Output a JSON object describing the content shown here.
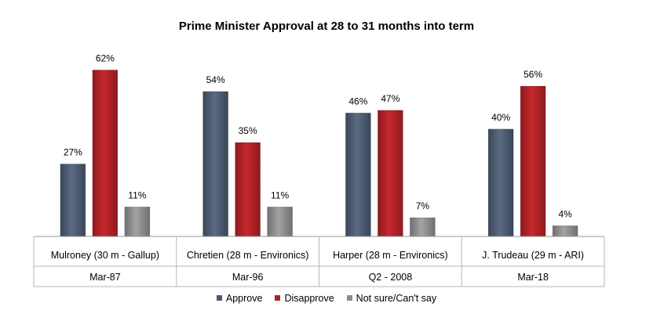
{
  "chart_data": {
    "type": "bar",
    "title": "Prime Minister Approval at 28 to 31 months into term",
    "xlabel": "",
    "ylabel": "",
    "ylim": [
      0,
      70
    ],
    "grid": false,
    "legend_position": "bottom",
    "categories": [
      {
        "label": "Mulroney (30 m - Gallup)",
        "date": "Mar-87"
      },
      {
        "label": "Chretien (28 m - Environics)",
        "date": "Mar-96"
      },
      {
        "label": "Harper (28 m - Environics)",
        "date": "Q2 - 2008"
      },
      {
        "label": "J. Trudeau (29 m - ARI)",
        "date": "Mar-18"
      }
    ],
    "series": [
      {
        "name": "Approve",
        "color": "#4a5a70",
        "values": [
          27,
          54,
          46,
          40
        ]
      },
      {
        "name": "Disapprove",
        "color": "#b32025",
        "values": [
          62,
          35,
          47,
          56
        ]
      },
      {
        "name": "Not sure/Can't say",
        "color": "#8c8c8c",
        "values": [
          11,
          11,
          7,
          4
        ]
      }
    ],
    "value_suffix": "%"
  }
}
